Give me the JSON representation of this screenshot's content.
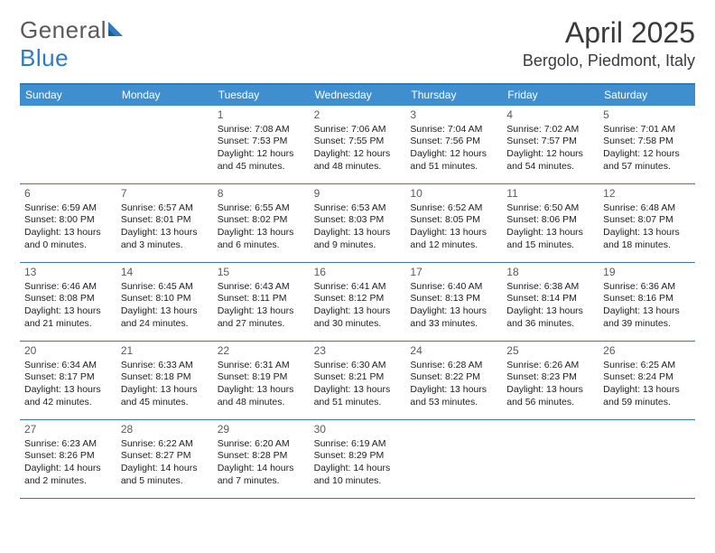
{
  "logo": {
    "text1": "General",
    "text2": "Blue"
  },
  "title": "April 2025",
  "location": "Bergolo, Piedmont, Italy",
  "colors": {
    "header_bar": "#3f8fcf",
    "accent_line": "#2f7bbf",
    "logo_gray": "#5a5a5a",
    "logo_blue": "#2f7bbf",
    "text": "#202020",
    "daynum": "#5a5a5a",
    "background": "#ffffff"
  },
  "fonts": {
    "title_size": 32,
    "location_size": 18,
    "dow_size": 12,
    "daynum_size": 12,
    "body_size": 10.5
  },
  "days_of_week": [
    "Sunday",
    "Monday",
    "Tuesday",
    "Wednesday",
    "Thursday",
    "Friday",
    "Saturday"
  ],
  "weeks": [
    [
      null,
      null,
      {
        "n": "1",
        "sr": "Sunrise: 7:08 AM",
        "ss": "Sunset: 7:53 PM",
        "dl": "Daylight: 12 hours and 45 minutes."
      },
      {
        "n": "2",
        "sr": "Sunrise: 7:06 AM",
        "ss": "Sunset: 7:55 PM",
        "dl": "Daylight: 12 hours and 48 minutes."
      },
      {
        "n": "3",
        "sr": "Sunrise: 7:04 AM",
        "ss": "Sunset: 7:56 PM",
        "dl": "Daylight: 12 hours and 51 minutes."
      },
      {
        "n": "4",
        "sr": "Sunrise: 7:02 AM",
        "ss": "Sunset: 7:57 PM",
        "dl": "Daylight: 12 hours and 54 minutes."
      },
      {
        "n": "5",
        "sr": "Sunrise: 7:01 AM",
        "ss": "Sunset: 7:58 PM",
        "dl": "Daylight: 12 hours and 57 minutes."
      }
    ],
    [
      {
        "n": "6",
        "sr": "Sunrise: 6:59 AM",
        "ss": "Sunset: 8:00 PM",
        "dl": "Daylight: 13 hours and 0 minutes."
      },
      {
        "n": "7",
        "sr": "Sunrise: 6:57 AM",
        "ss": "Sunset: 8:01 PM",
        "dl": "Daylight: 13 hours and 3 minutes."
      },
      {
        "n": "8",
        "sr": "Sunrise: 6:55 AM",
        "ss": "Sunset: 8:02 PM",
        "dl": "Daylight: 13 hours and 6 minutes."
      },
      {
        "n": "9",
        "sr": "Sunrise: 6:53 AM",
        "ss": "Sunset: 8:03 PM",
        "dl": "Daylight: 13 hours and 9 minutes."
      },
      {
        "n": "10",
        "sr": "Sunrise: 6:52 AM",
        "ss": "Sunset: 8:05 PM",
        "dl": "Daylight: 13 hours and 12 minutes."
      },
      {
        "n": "11",
        "sr": "Sunrise: 6:50 AM",
        "ss": "Sunset: 8:06 PM",
        "dl": "Daylight: 13 hours and 15 minutes."
      },
      {
        "n": "12",
        "sr": "Sunrise: 6:48 AM",
        "ss": "Sunset: 8:07 PM",
        "dl": "Daylight: 13 hours and 18 minutes."
      }
    ],
    [
      {
        "n": "13",
        "sr": "Sunrise: 6:46 AM",
        "ss": "Sunset: 8:08 PM",
        "dl": "Daylight: 13 hours and 21 minutes."
      },
      {
        "n": "14",
        "sr": "Sunrise: 6:45 AM",
        "ss": "Sunset: 8:10 PM",
        "dl": "Daylight: 13 hours and 24 minutes."
      },
      {
        "n": "15",
        "sr": "Sunrise: 6:43 AM",
        "ss": "Sunset: 8:11 PM",
        "dl": "Daylight: 13 hours and 27 minutes."
      },
      {
        "n": "16",
        "sr": "Sunrise: 6:41 AM",
        "ss": "Sunset: 8:12 PM",
        "dl": "Daylight: 13 hours and 30 minutes."
      },
      {
        "n": "17",
        "sr": "Sunrise: 6:40 AM",
        "ss": "Sunset: 8:13 PM",
        "dl": "Daylight: 13 hours and 33 minutes."
      },
      {
        "n": "18",
        "sr": "Sunrise: 6:38 AM",
        "ss": "Sunset: 8:14 PM",
        "dl": "Daylight: 13 hours and 36 minutes."
      },
      {
        "n": "19",
        "sr": "Sunrise: 6:36 AM",
        "ss": "Sunset: 8:16 PM",
        "dl": "Daylight: 13 hours and 39 minutes."
      }
    ],
    [
      {
        "n": "20",
        "sr": "Sunrise: 6:34 AM",
        "ss": "Sunset: 8:17 PM",
        "dl": "Daylight: 13 hours and 42 minutes."
      },
      {
        "n": "21",
        "sr": "Sunrise: 6:33 AM",
        "ss": "Sunset: 8:18 PM",
        "dl": "Daylight: 13 hours and 45 minutes."
      },
      {
        "n": "22",
        "sr": "Sunrise: 6:31 AM",
        "ss": "Sunset: 8:19 PM",
        "dl": "Daylight: 13 hours and 48 minutes."
      },
      {
        "n": "23",
        "sr": "Sunrise: 6:30 AM",
        "ss": "Sunset: 8:21 PM",
        "dl": "Daylight: 13 hours and 51 minutes."
      },
      {
        "n": "24",
        "sr": "Sunrise: 6:28 AM",
        "ss": "Sunset: 8:22 PM",
        "dl": "Daylight: 13 hours and 53 minutes."
      },
      {
        "n": "25",
        "sr": "Sunrise: 6:26 AM",
        "ss": "Sunset: 8:23 PM",
        "dl": "Daylight: 13 hours and 56 minutes."
      },
      {
        "n": "26",
        "sr": "Sunrise: 6:25 AM",
        "ss": "Sunset: 8:24 PM",
        "dl": "Daylight: 13 hours and 59 minutes."
      }
    ],
    [
      {
        "n": "27",
        "sr": "Sunrise: 6:23 AM",
        "ss": "Sunset: 8:26 PM",
        "dl": "Daylight: 14 hours and 2 minutes."
      },
      {
        "n": "28",
        "sr": "Sunrise: 6:22 AM",
        "ss": "Sunset: 8:27 PM",
        "dl": "Daylight: 14 hours and 5 minutes."
      },
      {
        "n": "29",
        "sr": "Sunrise: 6:20 AM",
        "ss": "Sunset: 8:28 PM",
        "dl": "Daylight: 14 hours and 7 minutes."
      },
      {
        "n": "30",
        "sr": "Sunrise: 6:19 AM",
        "ss": "Sunset: 8:29 PM",
        "dl": "Daylight: 14 hours and 10 minutes."
      },
      null,
      null,
      null
    ]
  ]
}
